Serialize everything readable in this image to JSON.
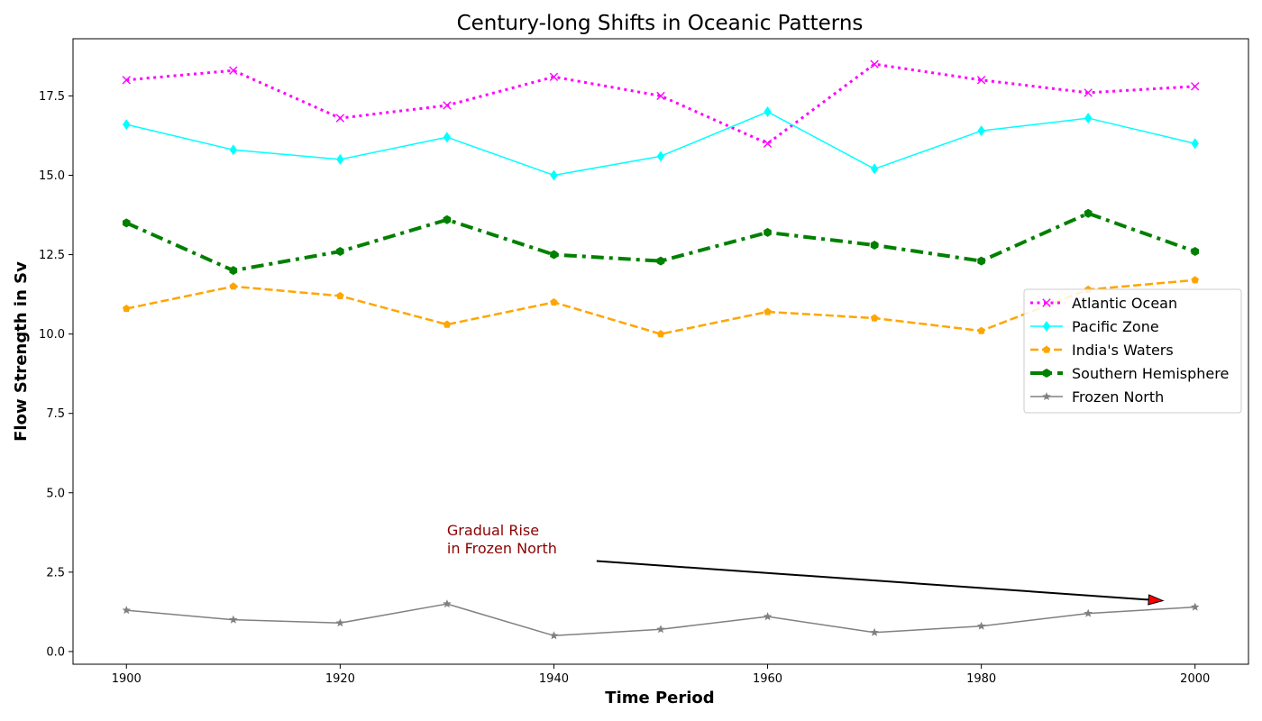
{
  "chart_data": {
    "type": "line",
    "title": "Century-long Shifts in Oceanic Patterns",
    "xlabel": "Time Period",
    "ylabel": "Flow Strength in Sv",
    "x": [
      1900,
      1910,
      1920,
      1930,
      1940,
      1950,
      1960,
      1970,
      1980,
      1990,
      2000
    ],
    "xlim": [
      1895,
      2005
    ],
    "ylim": [
      -0.4,
      19.3
    ],
    "x_ticks": [
      "1900",
      "1920",
      "1940",
      "1960",
      "1980",
      "2000"
    ],
    "y_ticks": [
      "0.0",
      "2.5",
      "5.0",
      "7.5",
      "10.0",
      "12.5",
      "15.0",
      "17.5"
    ],
    "grid": false,
    "legend_position": "center-right",
    "series": [
      {
        "name": "Atlantic Ocean",
        "values": [
          18.0,
          18.3,
          16.8,
          17.2,
          18.1,
          17.5,
          16.0,
          18.5,
          18.0,
          17.6,
          17.8
        ],
        "color": "#ff00ff",
        "line_style": "dotted",
        "marker": "x"
      },
      {
        "name": "Pacific Zone",
        "values": [
          16.6,
          15.8,
          15.5,
          16.2,
          15.0,
          15.6,
          17.0,
          15.2,
          16.4,
          16.8,
          16.0
        ],
        "color": "#00ffff",
        "line_style": "solid",
        "marker": "diamond"
      },
      {
        "name": "India's Waters",
        "values": [
          10.8,
          11.5,
          11.2,
          10.3,
          11.0,
          10.0,
          10.7,
          10.5,
          10.1,
          11.4,
          11.7
        ],
        "color": "#ffa500",
        "line_style": "dashed",
        "marker": "pentagon"
      },
      {
        "name": "Southern Hemisphere",
        "values": [
          13.5,
          12.0,
          12.6,
          13.6,
          12.5,
          12.3,
          13.2,
          12.8,
          12.3,
          13.8,
          12.6
        ],
        "color": "#008000",
        "line_style": "dashdot",
        "marker": "hexagon"
      },
      {
        "name": "Frozen North",
        "values": [
          1.3,
          1.0,
          0.9,
          1.5,
          0.5,
          0.7,
          1.1,
          0.6,
          0.8,
          1.2,
          1.4
        ],
        "color": "#808080",
        "line_style": "solid",
        "marker": "star"
      }
    ],
    "annotation": {
      "lines": [
        "Gradual Rise",
        "in Frozen North"
      ],
      "color": "#8b0000",
      "text_x": 1930,
      "text_y": 3.0,
      "arrow_from": [
        1944,
        2.85
      ],
      "arrow_to": [
        1997,
        1.6
      ],
      "arrow_head_color": "#ff0000"
    }
  }
}
